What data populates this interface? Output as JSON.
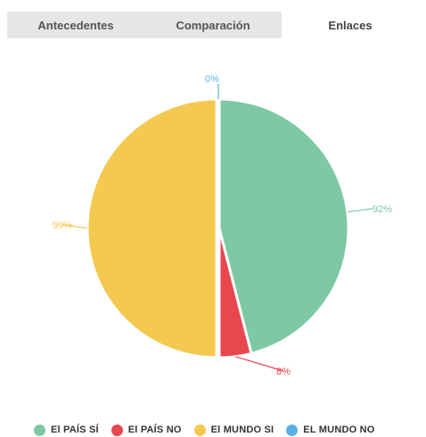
{
  "tabs": [
    {
      "label": "Antecedentes",
      "active": false
    },
    {
      "label": "Comparación",
      "active": false
    },
    {
      "label": "Enlaces",
      "active": true
    }
  ],
  "chart_data": {
    "type": "pie",
    "categories": [
      "El PAÍS SÍ",
      "El PAÍS NO",
      "El MUNDO SI",
      "EL MUNDO NO"
    ],
    "values": [
      92,
      8,
      99,
      0
    ],
    "data_labels": [
      "92%",
      "8%",
      "99%",
      "0%"
    ],
    "colors": [
      "#7ec8a4",
      "#e8474f",
      "#f4c94f",
      "#5ab0e6"
    ],
    "legend_position": "bottom"
  },
  "legend": [
    {
      "label": "El PAÍS SÍ",
      "color": "#7ec8a4"
    },
    {
      "label": "El PAÍS NO",
      "color": "#e8474f"
    },
    {
      "label": "El MUNDO SI",
      "color": "#f4c94f"
    },
    {
      "label": "EL MUNDO NO",
      "color": "#5ab0e6"
    }
  ]
}
